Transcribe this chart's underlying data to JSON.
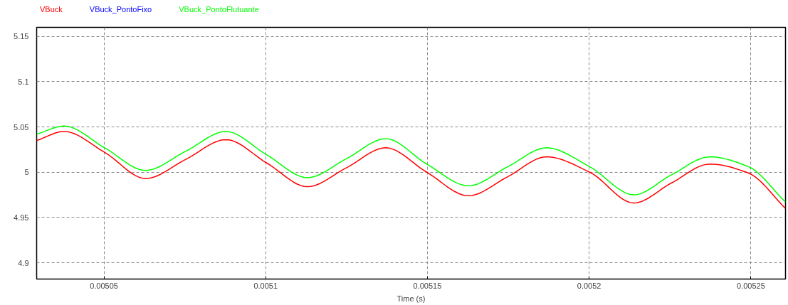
{
  "chart_data": {
    "type": "line",
    "xlabel": "Time (s)",
    "x": [
      0.0050292,
      0.0050377,
      0.0050502,
      0.0050629,
      0.0050752,
      0.0050877,
      0.0051004,
      0.0051129,
      0.005125,
      0.0051371,
      0.0051498,
      0.0051627,
      0.0051748,
      0.0051868,
      0.0052002,
      0.0052138,
      0.0052254,
      0.0052373,
      0.0052493,
      0.0052607
    ],
    "series": [
      {
        "name": "VBuck",
        "color": "#ff0000",
        "values": [
          5.035,
          5.045,
          5.022,
          4.993,
          5.014,
          5.036,
          5.01,
          4.984,
          5.005,
          5.027,
          5.0,
          4.974,
          4.995,
          5.017,
          5.0,
          4.966,
          4.988,
          5.009,
          4.999,
          4.96
        ]
      },
      {
        "name": "VBuck_PontoFixo",
        "color": "#0000ff",
        "values": [
          null,
          null,
          null,
          null,
          null,
          null,
          null,
          null,
          null,
          null,
          null,
          null,
          null,
          null,
          null,
          null,
          null,
          null,
          null,
          null
        ]
      },
      {
        "name": "VBuck_PontoFlutuante",
        "color": "#00ff00",
        "values": [
          5.042,
          5.051,
          5.027,
          5.002,
          5.023,
          5.045,
          5.019,
          4.994,
          5.015,
          5.037,
          5.009,
          4.985,
          5.006,
          5.027,
          5.006,
          4.975,
          4.997,
          5.017,
          5.006,
          4.967
        ]
      }
    ],
    "xlim": [
      0.0050292,
      0.0052607
    ],
    "ylim": [
      4.882,
      5.16
    ],
    "xticks": [
      0.00505,
      0.0051,
      0.00515,
      0.0052,
      0.00525
    ],
    "yticks": [
      4.9,
      4.95,
      5,
      5.05,
      5.1,
      5.15
    ],
    "grid": true,
    "line_style": "solid",
    "marker": "none"
  }
}
